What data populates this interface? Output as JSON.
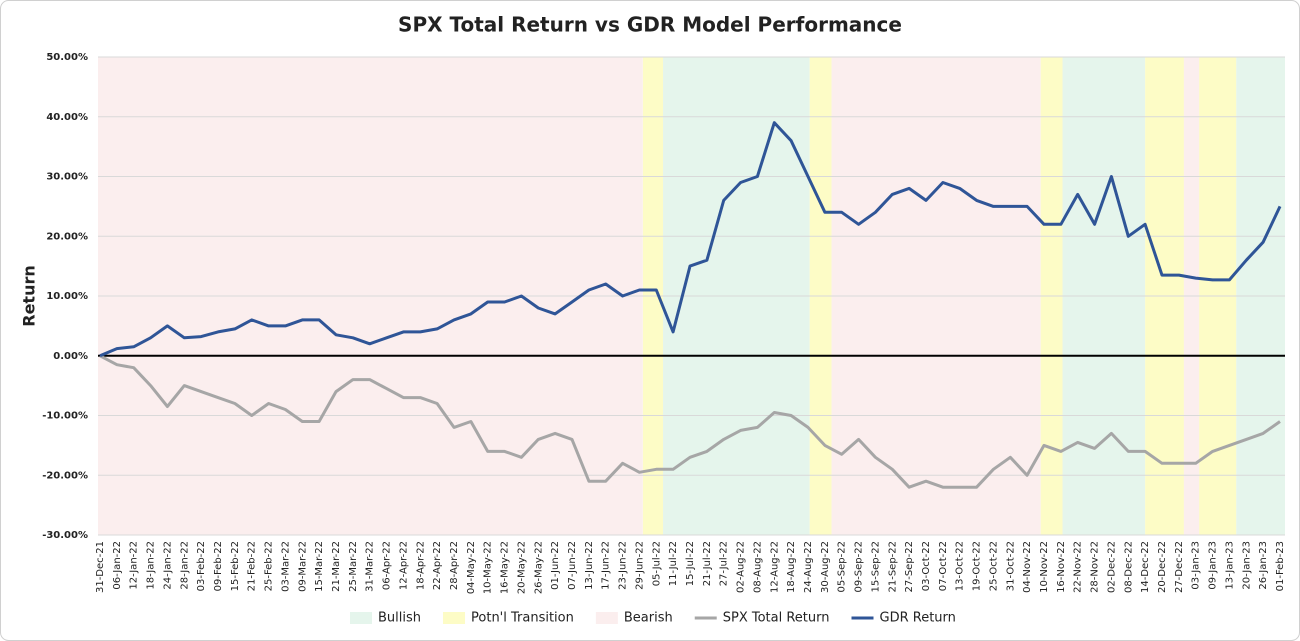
{
  "chart_data": {
    "type": "line",
    "title": "SPX Total Return vs GDR Model Performance",
    "y_label": "Return",
    "categories": [
      "31-Dec-21",
      "06-Jan-22",
      "12-Jan-22",
      "18-Jan-22",
      "24-Jan-22",
      "28-Jan-22",
      "03-Feb-22",
      "09-Feb-22",
      "15-Feb-22",
      "21-Feb-22",
      "25-Feb-22",
      "03-Mar-22",
      "09-Mar-22",
      "15-Mar-22",
      "21-Mar-22",
      "25-Mar-22",
      "31-Mar-22",
      "06-Apr-22",
      "12-Apr-22",
      "18-Apr-22",
      "22-Apr-22",
      "28-Apr-22",
      "04-May-22",
      "10-May-22",
      "16-May-22",
      "20-May-22",
      "26-May-22",
      "01-Jun-22",
      "07-Jun-22",
      "13-Jun-22",
      "17-Jun-22",
      "23-Jun-22",
      "29-Jun-22",
      "05-Jul-22",
      "11-Jul-22",
      "15-Jul-22",
      "21-Jul-22",
      "27-Jul-22",
      "02-Aug-22",
      "08-Aug-22",
      "12-Aug-22",
      "18-Aug-22",
      "24-Aug-22",
      "30-Aug-22",
      "05-Sep-22",
      "09-Sep-22",
      "15-Sep-22",
      "21-Sep-22",
      "27-Sep-22",
      "03-Oct-22",
      "07-Oct-22",
      "13-Oct-22",
      "19-Oct-22",
      "25-Oct-22",
      "31-Oct-22",
      "04-Nov-22",
      "10-Nov-22",
      "16-Nov-22",
      "22-Nov-22",
      "28-Nov-22",
      "02-Dec-22",
      "08-Dec-22",
      "14-Dec-22",
      "20-Dec-22",
      "27-Dec-22",
      "03-Jan-23",
      "09-Jan-23",
      "13-Jan-23",
      "20-Jan-23",
      "26-Jan-23",
      "01-Feb-23"
    ],
    "bands": [
      {
        "name": "Bullish",
        "color": "#e5f5ec",
        "spans": [
          [
            33.4,
            42.1
          ],
          [
            57.1,
            62
          ],
          [
            67.4,
            70.3
          ]
        ]
      },
      {
        "name": "Potn'l Transition",
        "color": "#fdfcc6",
        "spans": [
          [
            32.2,
            33.4
          ],
          [
            42.1,
            43.4
          ],
          [
            55.8,
            57.1
          ],
          [
            62,
            64.3
          ],
          [
            65.2,
            67.4
          ]
        ]
      },
      {
        "name": "Bearish",
        "color": "#fbeeee",
        "spans": [
          [
            0,
            32.2
          ],
          [
            43.4,
            55.8
          ],
          [
            64.3,
            65.2
          ]
        ]
      }
    ],
    "series": [
      {
        "name": "SPX Total Return",
        "color": "#a6a6a6",
        "values": [
          0,
          -1.5,
          -2,
          -5,
          -8.5,
          -5,
          -6,
          -7,
          -8,
          -10,
          -8,
          -9,
          -11,
          -11,
          -6,
          -4,
          -4,
          -5.5,
          -7,
          -7,
          -8,
          -12,
          -11,
          -16,
          -16,
          -17,
          -14,
          -13,
          -14,
          -21,
          -21,
          -18,
          -19.5,
          -19,
          -19,
          -17,
          -16,
          -14,
          -12.5,
          -12,
          -9.5,
          -10,
          -12,
          -15,
          -16.5,
          -14,
          -17,
          -19,
          -22,
          -21,
          -22,
          -22,
          -22,
          -19,
          -17,
          -20,
          -15,
          -16,
          -14.5,
          -15.5,
          -13,
          -16,
          -16,
          -18,
          -18,
          -18,
          -16,
          -15,
          -14,
          -13,
          -11
        ]
      },
      {
        "name": "GDR Return",
        "color": "#2f5597",
        "values": [
          0,
          1.2,
          1.5,
          3,
          5,
          3,
          3.2,
          4,
          4.5,
          6,
          5,
          5,
          6,
          6,
          3.5,
          3,
          2,
          3,
          4,
          4,
          4.5,
          6,
          7,
          9,
          9,
          10,
          8,
          7,
          9,
          11,
          12,
          10,
          11,
          11,
          4,
          15,
          16,
          26,
          29,
          30,
          39,
          36,
          30,
          24,
          24,
          22,
          24,
          27,
          28,
          26,
          29,
          28,
          26,
          25,
          25,
          25,
          22,
          22,
          27,
          22,
          30,
          20,
          22,
          13.5,
          13.5,
          13,
          12.7,
          12.7,
          16,
          19,
          25
        ]
      }
    ],
    "ylim": [
      -30,
      50
    ],
    "yticks": [
      {
        "value": -30,
        "label": "-30.00%"
      },
      {
        "value": -20,
        "label": "-20.00%"
      },
      {
        "value": -10,
        "label": "-10.00%"
      },
      {
        "value": 0,
        "label": "0.00%"
      },
      {
        "value": 10,
        "label": "10.00%"
      },
      {
        "value": 20,
        "label": "20.00%"
      },
      {
        "value": 30,
        "label": "30.00%"
      },
      {
        "value": 40,
        "label": "40.00%"
      },
      {
        "value": 50,
        "label": "50.00%"
      }
    ],
    "grid": true
  }
}
